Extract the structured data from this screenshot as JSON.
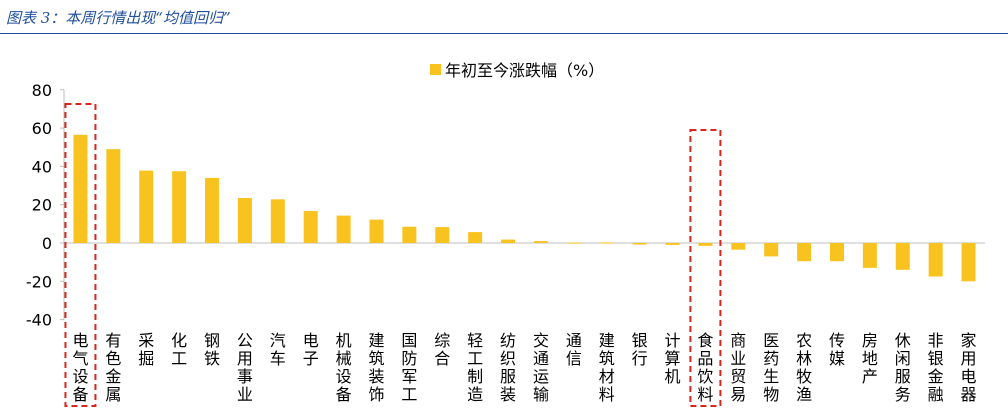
{
  "caption": "图表 3：本周行情出现“均值回归”",
  "chart_data": {
    "type": "bar",
    "title": "",
    "xlabel": "",
    "ylabel": "",
    "ylim": [
      -40,
      80
    ],
    "yticks": [
      80,
      60,
      40,
      20,
      0,
      -20,
      -40
    ],
    "legend": {
      "position": "top-center",
      "entries": [
        "年初至今涨跌幅（%）"
      ]
    },
    "categories": [
      "电气设备",
      "有色金属",
      "采掘",
      "化工",
      "钢铁",
      "公用事业",
      "汽车",
      "电子",
      "机械设备",
      "建筑装饰",
      "国防军工",
      "综合",
      "轻工制造",
      "纺织服装",
      "交通运输",
      "通信",
      "建筑材料",
      "银行",
      "计算机",
      "食品饮料",
      "商业贸易",
      "医药生物",
      "农林牧渔",
      "传媒",
      "房地产",
      "休闲服务",
      "非银金融",
      "家用电器"
    ],
    "series": [
      {
        "name": "年初至今涨跌幅（%）",
        "color": "#F9C31F",
        "values": [
          56.5,
          49.0,
          37.8,
          37.5,
          34.0,
          23.5,
          22.8,
          16.7,
          14.3,
          12.2,
          8.5,
          8.3,
          5.7,
          1.8,
          1.0,
          0.2,
          0.3,
          -0.8,
          -1.0,
          -1.5,
          -3.5,
          -7.0,
          -9.5,
          -9.5,
          -13.0,
          -14.0,
          -17.5,
          -20.0
        ]
      }
    ],
    "highlighted_categories": [
      "电气设备",
      "食品饮料"
    ],
    "highlight_color": "#D9261C"
  }
}
